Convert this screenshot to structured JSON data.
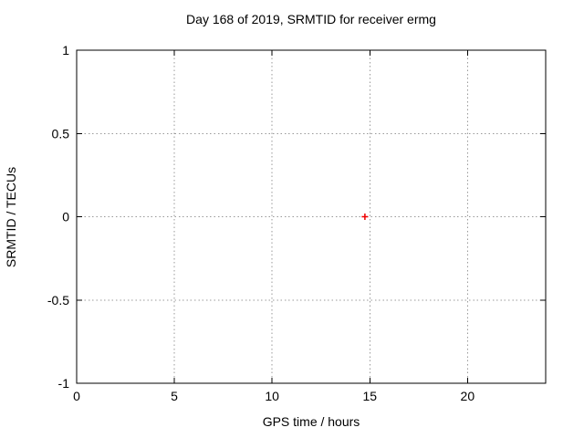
{
  "chart_data": {
    "type": "scatter",
    "title": "Day 168 of 2019, SRMTID for receiver ermg",
    "xlabel": "GPS time / hours",
    "ylabel": "SRMTID / TECUs",
    "xlim": [
      0,
      24
    ],
    "ylim": [
      -1,
      1
    ],
    "xticks": [
      "0",
      "5",
      "10",
      "15",
      "20"
    ],
    "yticks": [
      "1",
      "0.5",
      "0",
      "-0.5",
      "-1"
    ],
    "grid": true,
    "grid_style": "dotted",
    "legend": "none",
    "series": [
      {
        "name": "SRMTID",
        "marker": "plus",
        "color": "#ee0000",
        "points": [
          {
            "x": 14.75,
            "y": 0.0
          }
        ]
      }
    ]
  },
  "colors": {
    "background": "#ffffff",
    "text": "#000000",
    "axis_border": "#000000",
    "gridline": "#999999",
    "marker": "#ee0000"
  }
}
